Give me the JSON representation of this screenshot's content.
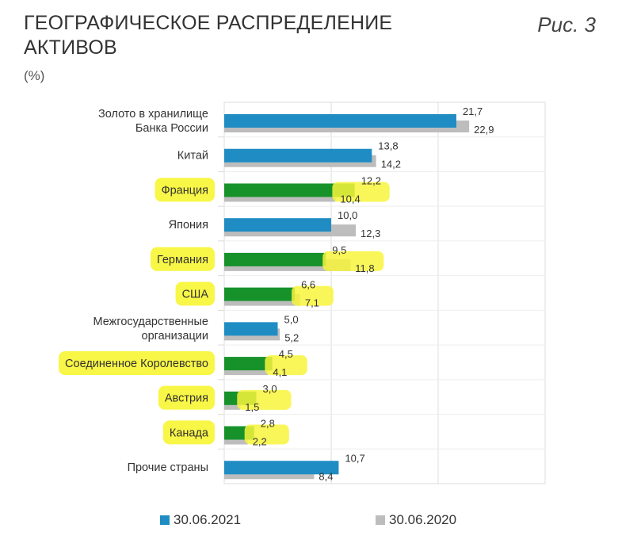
{
  "figure_label": "Рис. 3",
  "chart_data": {
    "type": "bar",
    "orientation": "horizontal",
    "title_lines": [
      "ГЕОГРАФИЧЕСКОЕ РАСПРЕДЕЛЕНИЕ",
      "АКТИВОВ"
    ],
    "subtitle": "(%)",
    "categories": [
      {
        "lines": [
          "Золото в хранилище",
          "Банка России"
        ],
        "highlight": false
      },
      {
        "lines": [
          "Китай"
        ],
        "highlight": false
      },
      {
        "lines": [
          "Франция"
        ],
        "highlight": true
      },
      {
        "lines": [
          "Япония"
        ],
        "highlight": false
      },
      {
        "lines": [
          "Германия"
        ],
        "highlight": true
      },
      {
        "lines": [
          "США"
        ],
        "highlight": true
      },
      {
        "lines": [
          "Межгосударственные",
          "организации"
        ],
        "highlight": false
      },
      {
        "lines": [
          "Соединенное Королевство"
        ],
        "highlight": true
      },
      {
        "lines": [
          "Австрия"
        ],
        "highlight": true
      },
      {
        "lines": [
          "Канада"
        ],
        "highlight": true
      },
      {
        "lines": [
          "Прочие страны"
        ],
        "highlight": false
      }
    ],
    "series": [
      {
        "name": "30.06.2021",
        "values": [
          21.7,
          13.8,
          12.2,
          10.0,
          9.5,
          6.6,
          5.0,
          4.5,
          3.0,
          2.8,
          10.7
        ],
        "labels": [
          "21,7",
          "13,8",
          "12,2",
          "10,0",
          "9,5",
          "6,6",
          "5,0",
          "4,5",
          "3,0",
          "2,8",
          "10,7"
        ]
      },
      {
        "name": "30.06.2020",
        "values": [
          22.9,
          14.2,
          10.4,
          12.3,
          11.8,
          7.1,
          5.2,
          4.1,
          1.5,
          2.2,
          8.4
        ],
        "labels": [
          "22,9",
          "14,2",
          "10,4",
          "12,3",
          "11,8",
          "7,1",
          "5,2",
          "4,1",
          "1,5",
          "2,2",
          "8,4"
        ]
      }
    ],
    "xlim": [
      0,
      30
    ],
    "grid": true,
    "legend_position": "bottom",
    "colors": {
      "primary": "#1f8cc3",
      "secondary": "#bdbdbd",
      "highlight_bar": "#17922b",
      "highlight_marker": "#f8f53c",
      "gridline": "#dcdcdc"
    }
  }
}
